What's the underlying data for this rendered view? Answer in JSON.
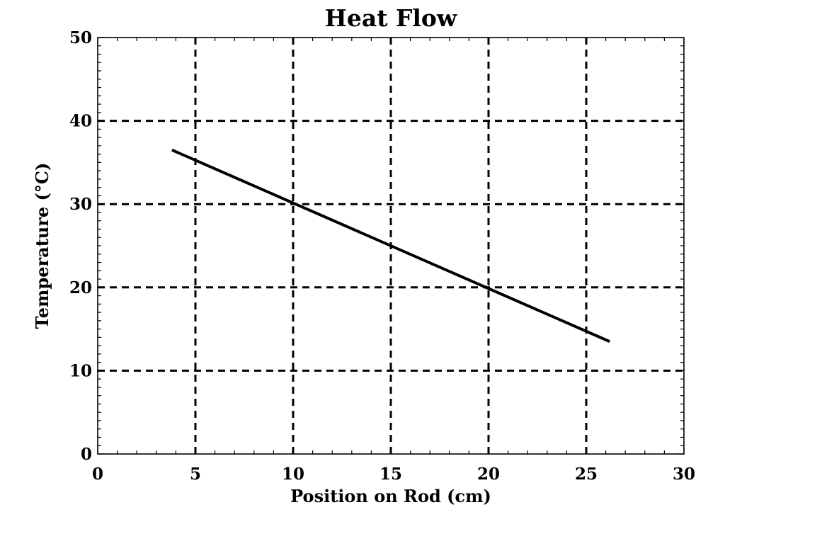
{
  "chart_data": {
    "type": "line",
    "title": "Heat Flow",
    "xlabel": "Position on Rod (cm)",
    "ylabel": "Temperature (°C)",
    "xlim": [
      0,
      30
    ],
    "ylim": [
      0,
      50
    ],
    "x_ticks": [
      "0",
      "5",
      "10",
      "15",
      "20",
      "25",
      "30"
    ],
    "y_ticks": [
      "0",
      "10",
      "20",
      "30",
      "40",
      "50"
    ],
    "grid": true,
    "series": [
      {
        "x": [
          3.8,
          26.2
        ],
        "y": [
          36.5,
          13.5
        ]
      }
    ],
    "colors": {
      "line": "#000000",
      "grid": "#000000",
      "background": "#ffffff"
    }
  }
}
